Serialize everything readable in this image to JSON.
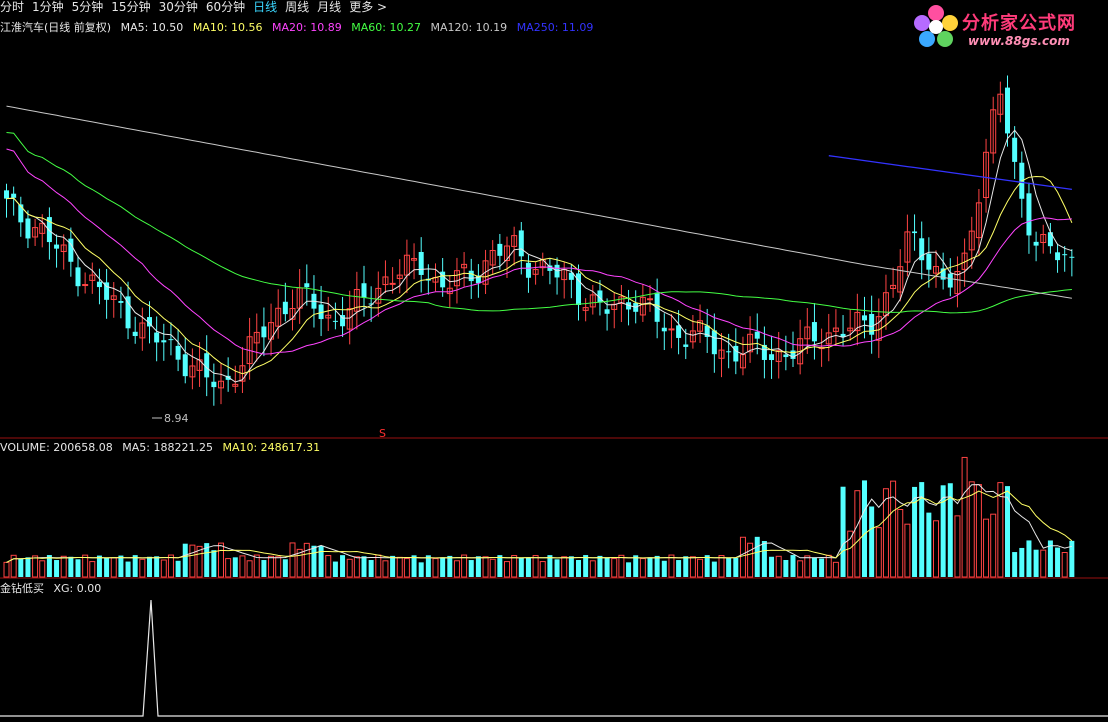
{
  "toolbar": {
    "tabs": [
      {
        "label": "分时",
        "active": false
      },
      {
        "label": "1分钟",
        "active": false
      },
      {
        "label": "5分钟",
        "active": false
      },
      {
        "label": "15分钟",
        "active": false
      },
      {
        "label": "30分钟",
        "active": false
      },
      {
        "label": "60分钟",
        "active": false
      },
      {
        "label": "日线",
        "active": true
      },
      {
        "label": "周线",
        "active": false
      },
      {
        "label": "月线",
        "active": false
      },
      {
        "label": "更多 >",
        "active": false
      }
    ]
  },
  "main_legend": {
    "title": "江淮汽车(日线 前复权)",
    "ma5": "MA5: 10.50",
    "ma10": "MA10: 10.56",
    "ma20": "MA20: 10.89",
    "ma60": "MA60: 10.27",
    "ma120": "MA120: 10.19",
    "ma250": "MA250: 11.09"
  },
  "volume_legend": {
    "volume": "VOLUME: 200658.08",
    "ma5": "MA5: 188221.25",
    "ma10": "MA10: 248617.31"
  },
  "indicator_legend": {
    "name": "金钻低买",
    "xg": "XG: 0.00"
  },
  "annotations": {
    "low_label": "8.94",
    "marker": "S"
  },
  "logo": {
    "brand": "分析家公式网",
    "url": "www.88gs.com"
  },
  "colors": {
    "up": "#ff4444",
    "down": "#54ffff",
    "ma5": "#e8e8e8",
    "ma10": "#ffff66",
    "ma20": "#ff44ff",
    "ma60": "#44ff44",
    "ma120": "#c8c8c8",
    "ma250": "#3333ff",
    "separator": "#9a1010"
  },
  "chart_data": {
    "type": "candlestick",
    "y_low_label": 8.94,
    "close_path": [
      11.2,
      11.0,
      10.9,
      10.6,
      10.4,
      10.2,
      10.0,
      9.8,
      9.6,
      9.5,
      9.3,
      9.1,
      9.0,
      9.3,
      9.6,
      9.9,
      10.1,
      10.0,
      9.8,
      9.9,
      10.1,
      10.3,
      10.4,
      10.5,
      10.2,
      10.3,
      10.4,
      10.6,
      10.7,
      10.5,
      10.4,
      10.3,
      10.1,
      9.9,
      10.0,
      10.1,
      9.8,
      9.6,
      9.7,
      9.5,
      9.4,
      9.5,
      9.4,
      9.4,
      9.5,
      9.6,
      9.7,
      9.7,
      9.8,
      10.2,
      10.8,
      10.6,
      10.2,
      10.4,
      11.6,
      12.6,
      11.4,
      10.8,
      10.6,
      10.5
    ]
  }
}
